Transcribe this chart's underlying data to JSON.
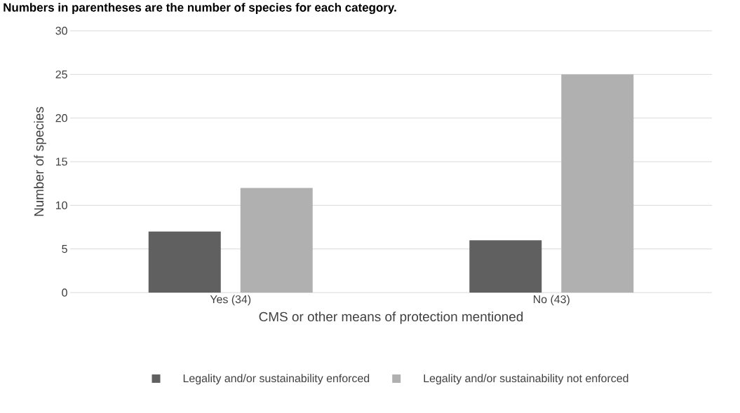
{
  "chart_data": {
    "type": "bar",
    "title": "Numbers in parentheses are the number of species for each category.",
    "categories": [
      "Yes (34)",
      "No (43)"
    ],
    "xlabel": "CMS or other means of protection mentioned",
    "ylabel": "Number of species",
    "ylim": [
      0,
      30
    ],
    "yticks": [
      0,
      5,
      10,
      15,
      20,
      25,
      30
    ],
    "grid": "y",
    "legend": "bottom",
    "series": [
      {
        "name": "Legality and/or sustainability enforced",
        "color": "#606060",
        "values": [
          7,
          6
        ]
      },
      {
        "name": "Legality and/or sustainability not enforced",
        "color": "#b0b0b0",
        "values": [
          12,
          25
        ]
      }
    ]
  }
}
